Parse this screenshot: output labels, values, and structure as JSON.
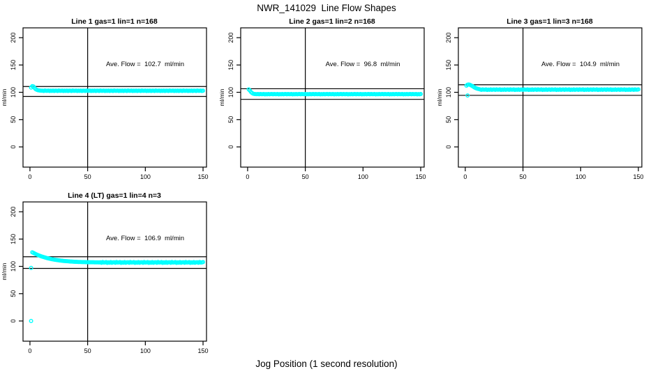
{
  "title": "NWR_141029  Line Flow Shapes",
  "xlabel": "Jog Position (1 second resolution)",
  "colors": {
    "point": "#00FFFF",
    "axis": "#000000",
    "background": "#FFFFFF"
  },
  "chart_data": [
    {
      "type": "scatter",
      "title": "Line 1 gas=1 lin=1 n=168",
      "line": 1,
      "gas": 1,
      "lin": 1,
      "n": 168,
      "ave_flow": 102.7,
      "ave_flow_label": "Ave. Flow =  102.7  ml/min",
      "ylabel": "ml/min",
      "x_ticks": [
        0,
        50,
        100,
        150
      ],
      "y_ticks": [
        0,
        50,
        100,
        150,
        200
      ],
      "xlim": [
        -6,
        153
      ],
      "ylim": [
        -37,
        218
      ],
      "vline_x": 50,
      "hlines": [
        110.6,
        92.4
      ],
      "x_start": 1,
      "outliers": [],
      "y_values": [
        108.6,
        111.2,
        110.7,
        107.9,
        105.7,
        104.5,
        103.8,
        103.4,
        103.1,
        103.0,
        103.0,
        102.5,
        103.2,
        102.7,
        102.8,
        103.1,
        102.4,
        102.9,
        102.6,
        103.1,
        102.5,
        102.9,
        103.0,
        102.5,
        103.2,
        102.7,
        102.8,
        103.1,
        102.4,
        102.9,
        102.6,
        103.1,
        102.5,
        102.9,
        103.0,
        102.5,
        103.2,
        102.7,
        102.8,
        103.1,
        102.4,
        102.9,
        102.6,
        103.1,
        102.5,
        102.9,
        103.0,
        102.5,
        103.2,
        102.7,
        102.8,
        103.1,
        102.4,
        102.9,
        102.6,
        103.1,
        102.5,
        102.9,
        103.0,
        102.5,
        103.2,
        102.7,
        102.8,
        103.1,
        102.4,
        102.9,
        102.6,
        103.1,
        102.5,
        102.9,
        103.0,
        102.5,
        103.2,
        102.7,
        102.8,
        103.1,
        102.4,
        102.9,
        102.6,
        103.1,
        102.5,
        102.9,
        103.0,
        102.5,
        103.2,
        102.7,
        102.8,
        103.1,
        102.4,
        102.9,
        102.6,
        103.1,
        102.5,
        102.9,
        103.0,
        102.5,
        103.2,
        102.7,
        102.8,
        103.1,
        102.4,
        102.9,
        102.6,
        103.1,
        102.5,
        102.9,
        103.0,
        102.5,
        103.2,
        102.7,
        102.8,
        103.1,
        102.4,
        102.9,
        102.6,
        103.1,
        102.5,
        102.9,
        103.0,
        102.5,
        103.2,
        102.7,
        102.8,
        103.1,
        102.4,
        102.9,
        102.6,
        103.1,
        102.5,
        102.9,
        103.0,
        102.5,
        103.2,
        102.7,
        102.8,
        103.1,
        102.4,
        102.9,
        102.6,
        103.1,
        102.5,
        102.9,
        103.0,
        102.5,
        103.2,
        102.7,
        102.8,
        103.1,
        102.4,
        102.9
      ]
    },
    {
      "type": "scatter",
      "title": "Line 2 gas=1 lin=2 n=168",
      "line": 2,
      "gas": 1,
      "lin": 2,
      "n": 168,
      "ave_flow": 96.8,
      "ave_flow_label": "Ave. Flow =  96.8  ml/min",
      "ylabel": "ml/min",
      "x_ticks": [
        0,
        50,
        100,
        150
      ],
      "y_ticks": [
        0,
        50,
        100,
        150,
        200
      ],
      "xlim": [
        -6,
        153
      ],
      "ylim": [
        -37,
        218
      ],
      "vline_x": 50,
      "hlines": [
        106.5,
        87.1
      ],
      "x_start": 1,
      "outliers": [],
      "y_values": [
        105.3,
        103.1,
        100.3,
        98.5,
        97.4,
        96.9,
        96.7,
        96.6,
        96.8,
        96.4,
        96.9,
        96.5,
        96.6,
        96.8,
        96.3,
        96.7,
        96.4,
        96.8,
        96.4,
        96.7,
        96.8,
        96.4,
        96.9,
        96.5,
        96.6,
        96.8,
        96.3,
        96.7,
        96.4,
        96.8,
        96.4,
        96.7,
        96.8,
        96.4,
        96.9,
        96.5,
        96.6,
        96.8,
        96.3,
        96.7,
        96.4,
        96.8,
        96.4,
        96.7,
        96.8,
        96.4,
        96.9,
        96.5,
        96.6,
        96.8,
        96.3,
        96.7,
        96.4,
        96.8,
        96.4,
        96.7,
        96.8,
        96.4,
        96.9,
        96.5,
        96.6,
        96.8,
        96.3,
        96.7,
        96.4,
        96.8,
        96.4,
        96.7,
        96.8,
        96.4,
        96.9,
        96.5,
        96.6,
        96.8,
        96.3,
        96.7,
        96.4,
        96.8,
        96.4,
        96.7,
        96.8,
        96.4,
        96.9,
        96.5,
        96.6,
        96.8,
        96.3,
        96.7,
        96.4,
        96.8,
        96.4,
        96.7,
        96.8,
        96.4,
        96.9,
        96.5,
        96.6,
        96.8,
        96.3,
        96.7,
        96.4,
        96.8,
        96.4,
        96.7,
        96.8,
        96.4,
        96.9,
        96.5,
        96.6,
        96.8,
        96.3,
        96.7,
        96.4,
        96.8,
        96.4,
        96.7,
        96.8,
        96.4,
        96.9,
        96.5,
        96.6,
        96.8,
        96.3,
        96.7,
        96.4,
        96.8,
        96.4,
        96.7,
        96.8,
        96.4,
        96.9,
        96.5,
        96.6,
        96.8,
        96.3,
        96.7,
        96.4,
        96.8,
        96.4,
        96.7,
        96.8,
        96.4,
        96.9,
        96.5,
        96.6,
        96.8,
        96.3,
        96.7,
        96.4,
        96.8
      ]
    },
    {
      "type": "scatter",
      "title": "Line 3 gas=1 lin=3 n=168",
      "line": 3,
      "gas": 1,
      "lin": 3,
      "n": 168,
      "ave_flow": 104.9,
      "ave_flow_label": "Ave. Flow =  104.9  ml/min",
      "ylabel": "ml/min",
      "x_ticks": [
        0,
        50,
        100,
        150
      ],
      "y_ticks": [
        0,
        50,
        100,
        150,
        200
      ],
      "xlim": [
        -6,
        153
      ],
      "ylim": [
        -37,
        218
      ],
      "vline_x": 50,
      "hlines": [
        113.8,
        94.4
      ],
      "x_start": 1,
      "outliers": [
        [
          2,
          94.2
        ]
      ],
      "y_values": [
        112.2,
        113.9,
        114.3,
        113.7,
        112.7,
        111.5,
        110.2,
        108.9,
        107.7,
        106.9,
        106.3,
        105.8,
        105.2,
        104.5,
        105.4,
        104.8,
        104.9,
        105.3,
        104.4,
        105.0,
        104.6,
        105.3,
        104.5,
        105.0,
        105.2,
        104.5,
        105.4,
        104.8,
        104.9,
        105.3,
        104.4,
        105.0,
        104.6,
        105.3,
        104.5,
        105.0,
        105.2,
        104.5,
        105.4,
        104.8,
        104.9,
        105.3,
        104.4,
        105.0,
        104.6,
        105.3,
        104.5,
        105.0,
        105.2,
        104.5,
        105.4,
        104.8,
        104.9,
        105.3,
        104.4,
        105.0,
        104.6,
        105.3,
        104.5,
        105.0,
        105.2,
        104.5,
        105.4,
        104.8,
        104.9,
        105.3,
        104.4,
        105.0,
        104.6,
        105.3,
        104.5,
        105.0,
        105.2,
        104.5,
        105.4,
        104.8,
        104.9,
        105.3,
        104.4,
        105.0,
        104.6,
        105.3,
        104.5,
        105.0,
        105.2,
        104.5,
        105.4,
        104.8,
        104.9,
        105.3,
        104.4,
        105.0,
        104.6,
        105.3,
        104.5,
        105.0,
        105.2,
        104.5,
        105.4,
        104.8,
        104.9,
        105.3,
        104.4,
        105.0,
        104.6,
        105.3,
        104.5,
        105.0,
        105.2,
        104.5,
        105.4,
        104.8,
        104.9,
        105.3,
        104.4,
        105.0,
        104.6,
        105.3,
        104.5,
        105.0,
        105.2,
        104.5,
        105.4,
        104.8,
        104.9,
        105.3,
        104.4,
        105.0,
        104.6,
        105.3,
        104.5,
        105.0,
        105.2,
        104.5,
        105.4,
        104.8,
        104.9,
        105.3,
        104.4,
        105.0,
        104.6,
        105.3,
        104.5,
        105.0,
        105.2,
        104.5,
        105.4,
        104.8,
        104.9,
        105.3
      ]
    },
    {
      "type": "scatter",
      "title": "Line 4 (LT) gas=1 lin=4 n=3",
      "line": 4,
      "gas": 1,
      "lin": 4,
      "n": 3,
      "ave_flow": 106.9,
      "ave_flow_label": "Ave. Flow =  106.9  ml/min",
      "ylabel": "ml/min",
      "x_ticks": [
        0,
        50,
        100,
        150
      ],
      "y_ticks": [
        0,
        50,
        100,
        150,
        200
      ],
      "xlim": [
        -6,
        153
      ],
      "ylim": [
        -37,
        218
      ],
      "vline_x": 50,
      "hlines": [
        117.6,
        96.2
      ],
      "x_start": 2,
      "outliers": [
        [
          1,
          0
        ],
        [
          1,
          97.2
        ]
      ],
      "y_values": [
        125.8,
        124.7,
        123.6,
        122.6,
        121.6,
        120.7,
        119.9,
        119.0,
        118.3,
        117.6,
        116.9,
        116.3,
        115.7,
        115.1,
        114.6,
        114.1,
        113.6,
        113.2,
        112.8,
        112.4,
        112.0,
        111.7,
        111.4,
        111.1,
        110.8,
        110.5,
        110.3,
        110.0,
        109.8,
        109.6,
        109.4,
        109.3,
        109.1,
        108.9,
        108.8,
        108.7,
        108.5,
        108.4,
        108.3,
        108.2,
        108.1,
        108.0,
        108.0,
        107.9,
        107.8,
        107.8,
        107.7,
        107.7,
        107.6,
        107.6,
        107.6,
        107.5,
        107.5,
        107.5,
        107.4,
        107.4,
        107.4,
        107.4,
        107.3,
        107.6,
        106.6,
        108.0,
        107.0,
        107.2,
        107.8,
        106.4,
        107.4,
        106.8,
        107.8,
        106.6,
        107.4,
        107.6,
        106.6,
        108.0,
        107.0,
        107.2,
        107.8,
        106.4,
        107.4,
        106.8,
        107.8,
        106.6,
        107.4,
        107.6,
        106.6,
        108.0,
        107.0,
        107.2,
        107.8,
        106.4,
        107.4,
        106.8,
        107.8,
        106.6,
        107.4,
        107.6,
        106.6,
        108.0,
        107.0,
        107.2,
        107.8,
        106.4,
        107.4,
        106.8,
        107.8,
        106.6,
        107.4,
        107.6,
        106.6,
        108.0,
        107.0,
        107.2,
        107.8,
        106.4,
        107.4,
        106.8,
        107.8,
        106.6,
        107.4,
        107.6,
        106.6,
        108.0,
        107.0,
        107.2,
        107.8,
        106.4,
        107.4,
        106.8,
        107.8,
        106.6,
        107.4,
        107.6,
        106.6,
        108.0,
        107.0,
        107.2,
        107.8,
        106.4,
        107.4,
        106.8,
        107.8,
        106.6,
        107.4,
        107.6,
        106.6,
        108.0,
        107.0,
        107.2,
        107.8
      ]
    }
  ]
}
